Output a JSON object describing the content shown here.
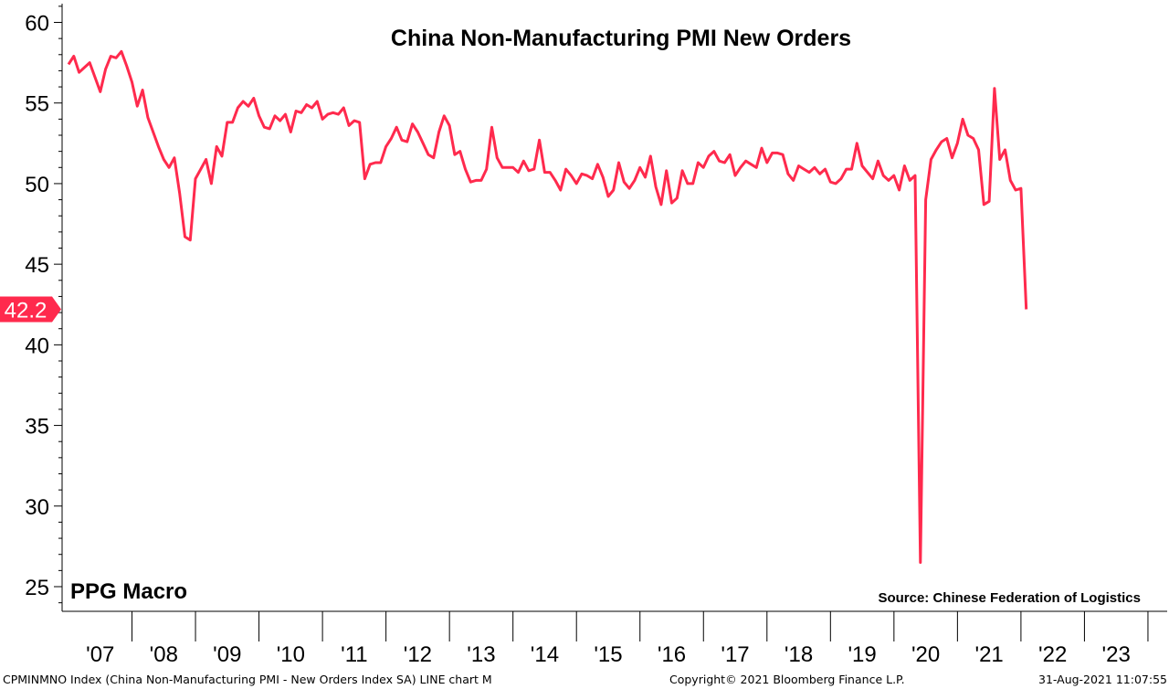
{
  "chart_data": {
    "type": "line",
    "title": "China Non-Manufacturing PMI New Orders",
    "watermark": "PPG Macro",
    "source": "Source: Chinese Federation of Logistics",
    "footer_left": "CPMINMNO Index (China Non-Manufacturing PMI - New Orders Index SA) LINE chart  M",
    "footer_center": "Copyright© 2021 Bloomberg Finance L.P.",
    "footer_right": "31-Aug-2021 11:07:55",
    "last_value_label": "42.2",
    "last_value": 42.2,
    "ylim": [
      24,
      61
    ],
    "yticks": [
      25,
      30,
      35,
      40,
      45,
      50,
      55,
      60
    ],
    "ytick_labels": [
      "25",
      "30",
      "35",
      "40",
      "45",
      "50",
      "55",
      "60"
    ],
    "xlim": [
      2007,
      2023.9
    ],
    "year_labels": [
      "'07",
      "'08",
      "'09",
      "'10",
      "'11",
      "'12",
      "'13",
      "'14",
      "'15",
      "'16",
      "'17",
      "'18",
      "'19",
      "'20",
      "'21",
      "'22",
      "'23"
    ],
    "line_color": "#ff2a4d",
    "label_color": "#ff2a4d",
    "series": [
      {
        "name": "China Non-Manufacturing PMI - New Orders Index SA",
        "x_start": 2007.0,
        "step": 0.08333,
        "values": [
          57.4,
          57.9,
          56.9,
          57.2,
          57.5,
          56.6,
          55.7,
          57.1,
          57.9,
          57.8,
          58.2,
          57.3,
          56.3,
          54.8,
          55.8,
          54.1,
          53.2,
          52.3,
          51.5,
          51.0,
          51.6,
          49.4,
          46.7,
          46.5,
          50.3,
          50.9,
          51.5,
          50.0,
          52.3,
          51.7,
          53.8,
          53.8,
          54.7,
          55.1,
          54.8,
          55.3,
          54.2,
          53.5,
          53.4,
          54.2,
          53.9,
          54.3,
          53.2,
          54.5,
          54.4,
          54.9,
          54.7,
          55.1,
          54.0,
          54.3,
          54.4,
          54.3,
          54.7,
          53.6,
          53.9,
          53.8,
          50.3,
          51.2,
          51.3,
          51.3,
          52.3,
          52.8,
          53.5,
          52.7,
          52.6,
          53.7,
          53.2,
          52.5,
          51.8,
          51.6,
          53.2,
          54.2,
          53.6,
          51.8,
          52.0,
          50.9,
          50.1,
          50.2,
          50.2,
          50.9,
          53.5,
          51.6,
          51.0,
          51.0,
          51.0,
          50.7,
          51.4,
          50.8,
          50.9,
          52.7,
          50.7,
          50.7,
          50.2,
          49.6,
          50.9,
          50.5,
          50.0,
          50.6,
          50.5,
          50.3,
          51.2,
          50.4,
          49.2,
          49.6,
          51.3,
          50.1,
          49.7,
          50.2,
          51.0,
          50.4,
          51.7,
          49.8,
          48.7,
          50.8,
          48.8,
          49.1,
          50.8,
          50.0,
          50.0,
          51.3,
          51.0,
          51.7,
          52.0,
          51.4,
          51.3,
          51.8,
          50.5,
          51.0,
          51.4,
          51.2,
          51.0,
          52.2,
          51.3,
          51.9,
          51.9,
          51.8,
          50.6,
          50.2,
          51.1,
          50.9,
          50.7,
          51.0,
          50.6,
          50.9,
          50.1,
          50.0,
          50.3,
          50.9,
          50.9,
          52.5,
          51.1,
          50.7,
          50.3,
          51.4,
          50.5,
          50.2,
          50.5,
          49.6,
          51.1,
          50.2,
          50.5,
          26.5,
          49.0,
          51.5,
          52.1,
          52.6,
          52.8,
          51.6,
          52.5,
          54.0,
          53.0,
          52.8,
          52.1,
          48.7,
          48.9,
          55.9,
          51.5,
          52.1,
          50.2,
          49.6,
          49.7,
          42.2
        ]
      }
    ]
  }
}
